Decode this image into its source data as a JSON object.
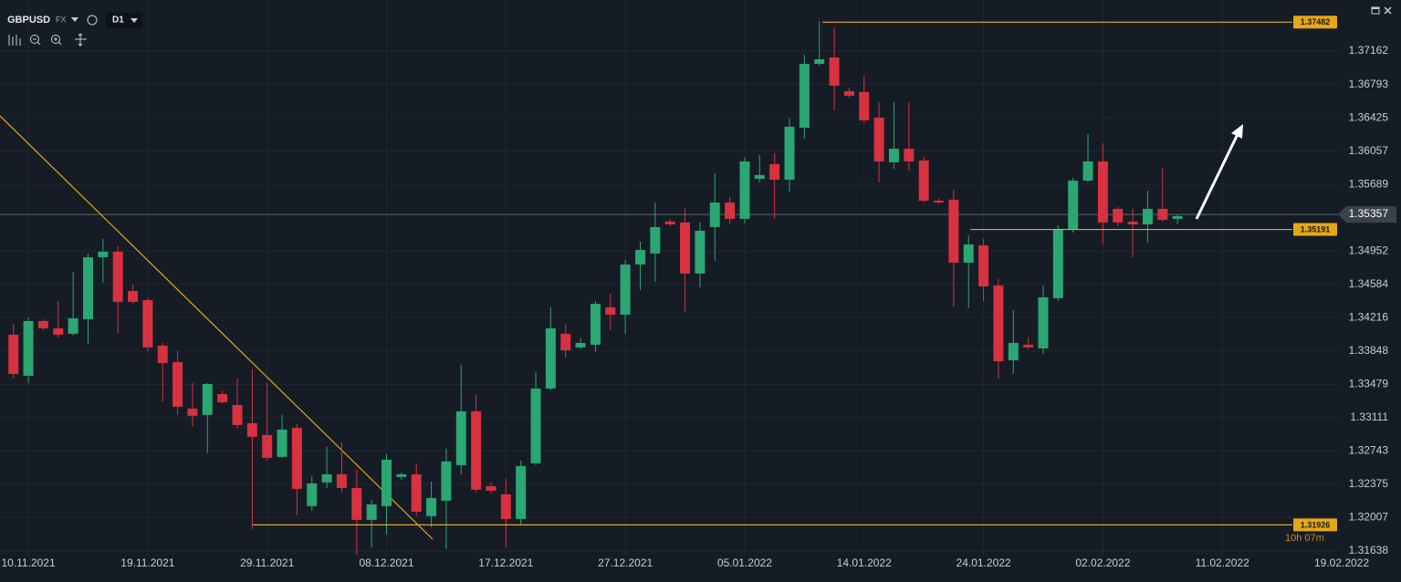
{
  "header": {
    "symbol": "GBPUSD",
    "market": "FX",
    "timeframe": "D1"
  },
  "chart_data": {
    "type": "candlestick",
    "up_color": "#2aa772",
    "down_color": "#d8313f",
    "grid": true,
    "ylim": [
      1.31577,
      1.37727
    ],
    "yticks": [
      1.37162,
      1.36793,
      1.36425,
      1.36057,
      1.35689,
      1.34952,
      1.34584,
      1.34216,
      1.33848,
      1.33479,
      1.33111,
      1.32743,
      1.32375,
      1.32007,
      1.31638
    ],
    "xlim": [
      -0.9,
      89
    ],
    "xticks": [
      {
        "value": 1,
        "label": "10.11.2021"
      },
      {
        "value": 9,
        "label": "19.11.2021"
      },
      {
        "value": 17,
        "label": "29.11.2021"
      },
      {
        "value": 25,
        "label": "08.12.2021"
      },
      {
        "value": 33,
        "label": "17.12.2021"
      },
      {
        "value": 41,
        "label": "27.12.2021"
      },
      {
        "value": 49,
        "label": "05.01.2022"
      },
      {
        "value": 57,
        "label": "14.01.2022"
      },
      {
        "value": 65,
        "label": "24.01.2022"
      },
      {
        "value": 73,
        "label": "02.02.2022"
      },
      {
        "value": 81,
        "label": "11.02.2022"
      },
      {
        "value": 89,
        "label": "19.02.2022"
      }
    ],
    "open": [
      1.34028,
      1.33574,
      1.34179,
      1.34098,
      1.34038,
      1.34199,
      1.34884,
      1.34945,
      1.34511,
      1.34411,
      1.33907,
      1.33725,
      1.33211,
      1.33141,
      1.33372,
      1.33251,
      1.3305,
      1.32919,
      1.32677,
      1.32999,
      1.32133,
      1.32395,
      1.32485,
      1.32334,
      1.31981,
      1.32133,
      1.32455,
      1.32485,
      1.32022,
      1.32193,
      1.32586,
      1.33181,
      1.32354,
      1.32264,
      1.31991,
      1.32606,
      1.33433,
      1.34038,
      1.33887,
      1.33917,
      1.3433,
      1.34249,
      1.34804,
      1.34925,
      1.35278,
      1.35268,
      1.34703,
      1.35217,
      1.35489,
      1.35308,
      1.35751,
      1.35913,
      1.35741,
      1.36316,
      1.37021,
      1.37092,
      1.36719,
      1.36709,
      1.36427,
      1.35933,
      1.36084,
      1.35953,
      1.35509,
      1.3552,
      1.34824,
      1.35015,
      1.34572,
      1.33745,
      1.33917,
      1.33876,
      1.34431,
      1.35187,
      1.35731,
      1.35943,
      1.35419,
      1.35278,
      1.35247,
      1.35419,
      1.35308
    ],
    "high": [
      1.34149,
      1.34219,
      1.34199,
      1.34401,
      1.34723,
      1.34925,
      1.35086,
      1.35005,
      1.34582,
      1.34441,
      1.33937,
      1.33846,
      1.33493,
      1.33493,
      1.33413,
      1.33544,
      1.33645,
      1.33493,
      1.33141,
      1.3304,
      1.32465,
      1.32788,
      1.32838,
      1.32536,
      1.32203,
      1.32707,
      1.32506,
      1.32606,
      1.32405,
      1.32768,
      1.33695,
      1.33362,
      1.32395,
      1.32435,
      1.32637,
      1.33614,
      1.3433,
      1.34139,
      1.33987,
      1.34401,
      1.34481,
      1.34854,
      1.35056,
      1.35489,
      1.35308,
      1.35429,
      1.35268,
      1.35812,
      1.3555,
      1.35993,
      1.36013,
      1.36034,
      1.36417,
      1.37122,
      1.37495,
      1.37425,
      1.36759,
      1.3689,
      1.36598,
      1.36598,
      1.36598,
      1.35993,
      1.3553,
      1.3563,
      1.35126,
      1.35086,
      1.34643,
      1.343,
      1.33998,
      1.34572,
      1.35237,
      1.35761,
      1.36245,
      1.36144,
      1.35439,
      1.35419,
      1.3562,
      1.35872,
      1.35358
    ],
    "low": [
      1.33544,
      1.33493,
      1.34078,
      1.33998,
      1.34018,
      1.33927,
      1.34602,
      1.34048,
      1.3437,
      1.33846,
      1.33292,
      1.33141,
      1.3301,
      1.32717,
      1.33262,
      1.32989,
      1.31881,
      1.32637,
      1.32667,
      1.32032,
      1.32082,
      1.32334,
      1.32284,
      1.31598,
      1.31679,
      1.3182,
      1.32425,
      1.32022,
      1.31901,
      1.31659,
      1.32485,
      1.32284,
      1.32274,
      1.31679,
      1.31931,
      1.32586,
      1.33413,
      1.33776,
      1.33866,
      1.33836,
      1.34078,
      1.34038,
      1.34522,
      1.34612,
      1.35227,
      1.3428,
      1.34552,
      1.34844,
      1.35257,
      1.35257,
      1.35711,
      1.35308,
      1.3561,
      1.36195,
      1.37001,
      1.36507,
      1.36648,
      1.36366,
      1.35711,
      1.35862,
      1.35842,
      1.35489,
      1.35469,
      1.3434,
      1.3432,
      1.34401,
      1.33544,
      1.33594,
      1.33866,
      1.33816,
      1.34401,
      1.35157,
      1.35711,
      1.35026,
      1.35227,
      1.34884,
      1.35046,
      1.35278,
      1.35247
    ],
    "close": [
      1.33594,
      1.34179,
      1.34098,
      1.34028,
      1.34209,
      1.34884,
      1.34945,
      1.34391,
      1.34391,
      1.33887,
      1.33715,
      1.33231,
      1.33131,
      1.33483,
      1.33282,
      1.3303,
      1.32899,
      1.32667,
      1.32979,
      1.32324,
      1.32385,
      1.32485,
      1.32334,
      1.31981,
      1.32153,
      1.32647,
      1.32485,
      1.32072,
      1.32223,
      1.32627,
      1.33181,
      1.32314,
      1.32304,
      1.31991,
      1.32576,
      1.33433,
      1.34098,
      1.33856,
      1.33937,
      1.3437,
      1.34249,
      1.34804,
      1.34965,
      1.35217,
      1.35247,
      1.34703,
      1.35177,
      1.35489,
      1.35308,
      1.35943,
      1.35792,
      1.35741,
      1.36326,
      1.37021,
      1.37072,
      1.3678,
      1.36669,
      1.36396,
      1.35943,
      1.36084,
      1.35943,
      1.35509,
      1.35489,
      1.34824,
      1.35026,
      1.34562,
      1.33735,
      1.33937,
      1.33887,
      1.34441,
      1.35197,
      1.35731,
      1.35943,
      1.35268,
      1.35268,
      1.35247,
      1.35419,
      1.35298,
      1.35338
    ],
    "levels": [
      1.37482,
      1.35191,
      1.31926
    ],
    "level_color": "#e6a817",
    "last_price": 1.35357,
    "timer": "10h 07m"
  }
}
